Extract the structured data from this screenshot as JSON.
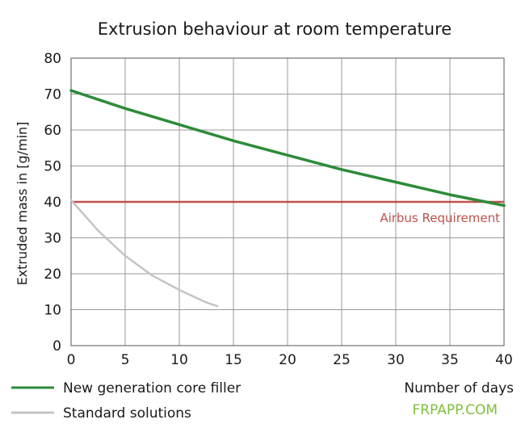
{
  "chart_data": {
    "type": "line",
    "title": "Extrusion behaviour at room temperature",
    "xlabel": "Number of days",
    "ylabel": "Extruded mass in [g/min]",
    "xlim": [
      0,
      40
    ],
    "ylim": [
      0,
      80
    ],
    "xticks": [
      "0",
      "5",
      "10",
      "15",
      "20",
      "25",
      "30",
      "35",
      "40"
    ],
    "yticks": [
      "0",
      "10",
      "20",
      "30",
      "40",
      "50",
      "60",
      "70",
      "80"
    ],
    "grid": true,
    "legend_position": "bottom-left",
    "series": [
      {
        "name": "New generation core filler",
        "color": "#2e8b3a",
        "x": [
          0,
          5,
          10,
          15,
          20,
          25,
          30,
          35,
          40
        ],
        "y": [
          71,
          66,
          61.5,
          57,
          53,
          49,
          45.5,
          42,
          39
        ]
      },
      {
        "name": "Standard solutions",
        "color": "#c4c4c4",
        "x": [
          0,
          2.5,
          5,
          7.5,
          10,
          12.5,
          13.5
        ],
        "y": [
          40.5,
          32,
          25,
          19.5,
          15.5,
          12,
          11
        ]
      }
    ],
    "reference_line": {
      "label": "Airbus Requirement",
      "y": 40,
      "color": "#c0504d"
    }
  },
  "watermark": "FRPAPP.COM"
}
